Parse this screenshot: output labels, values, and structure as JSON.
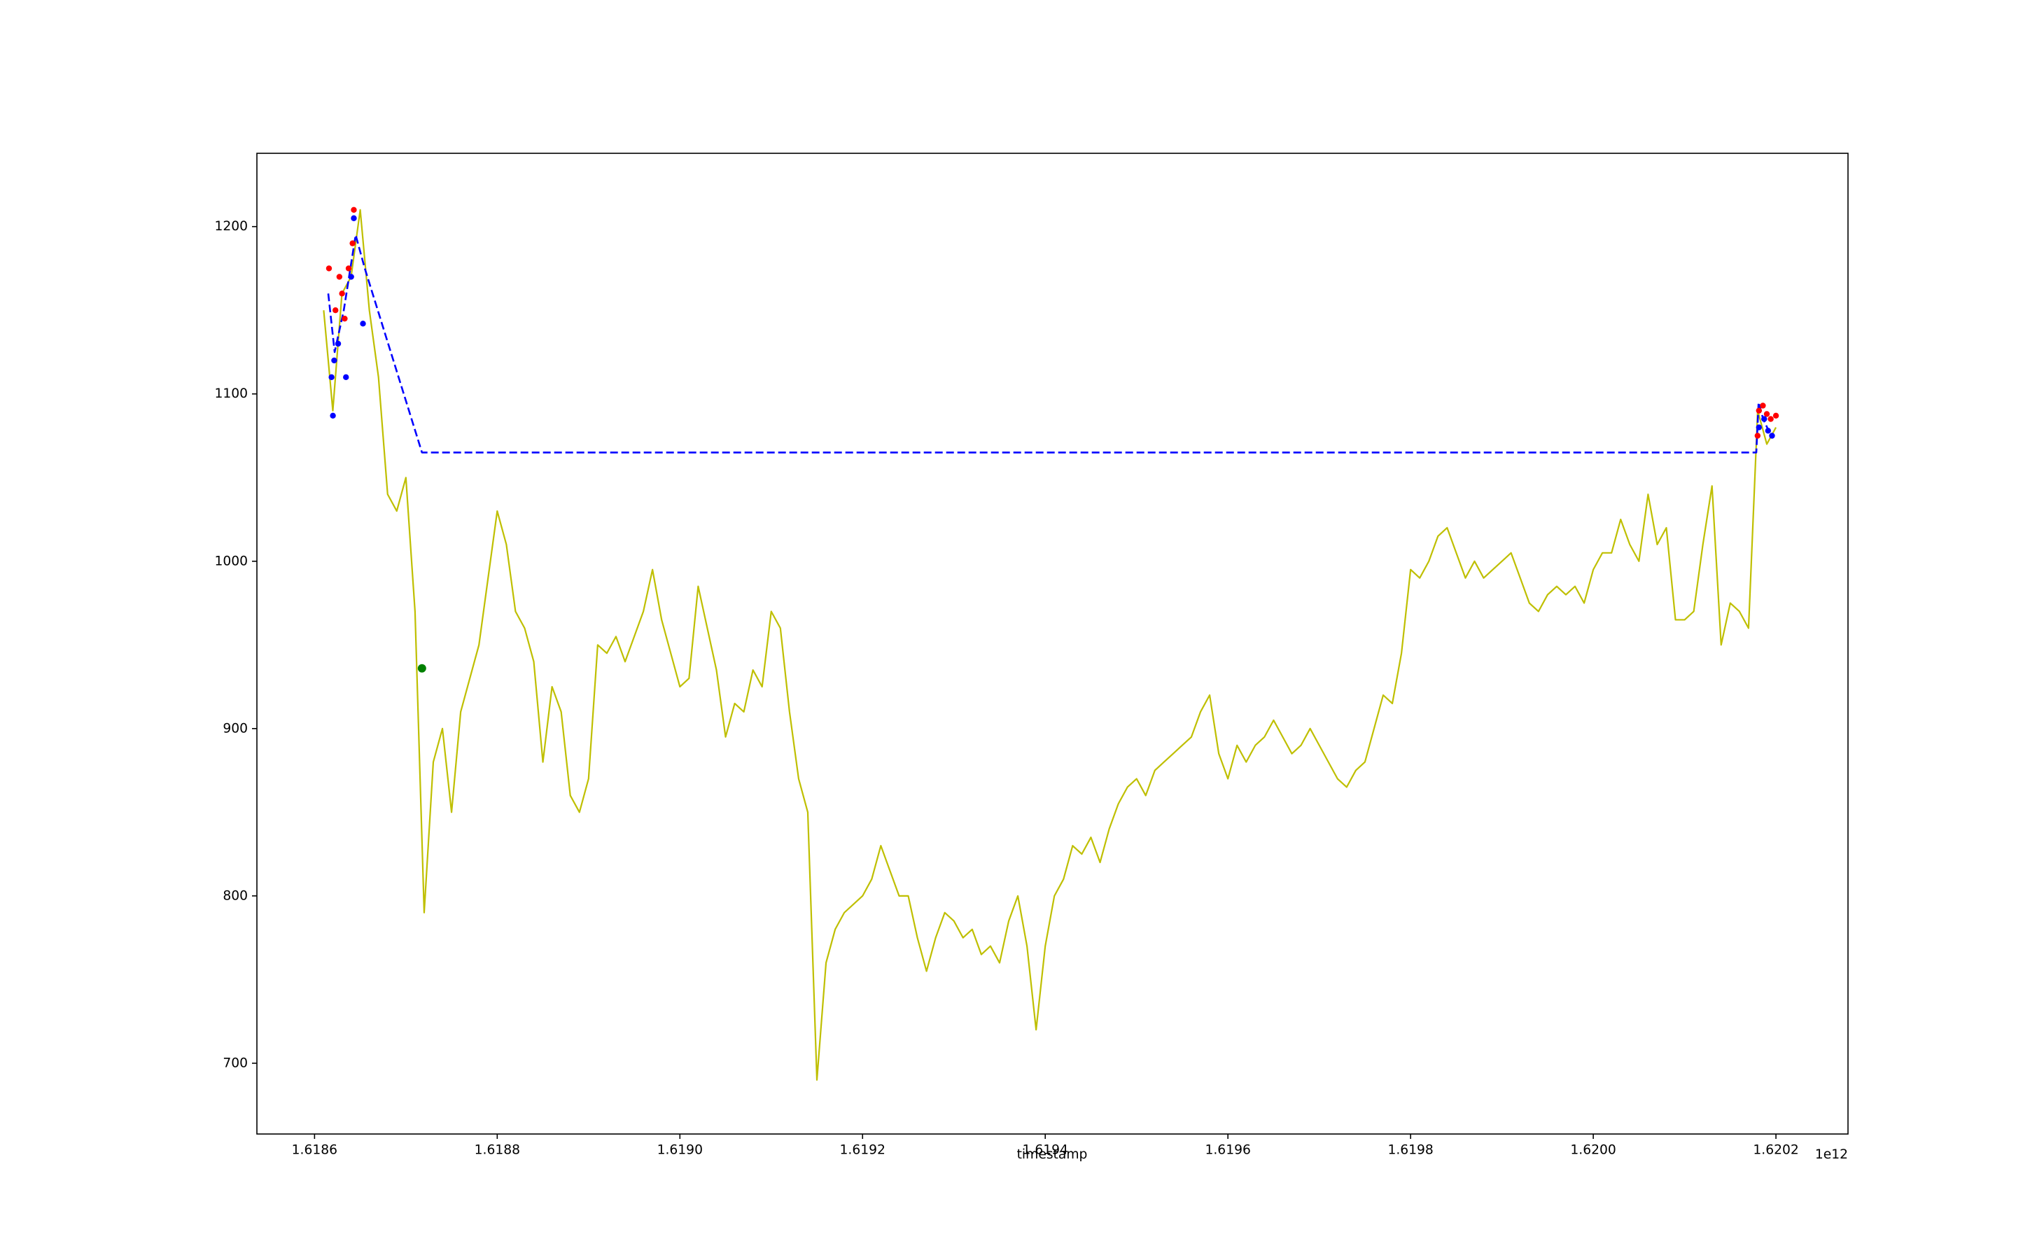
{
  "chart_data": {
    "type": "line",
    "xlabel": "timestamp",
    "x_offset_label": "1e12",
    "xlim": [
      1618536880000,
      1620278890000
    ],
    "ylim": [
      657.7,
      1243.8
    ],
    "xticks": [
      {
        "value": 1618600000000,
        "label": "1.6186"
      },
      {
        "value": 1618800000000,
        "label": "1.6188"
      },
      {
        "value": 1619000000000,
        "label": "1.6190"
      },
      {
        "value": 1619200000000,
        "label": "1.6192"
      },
      {
        "value": 1619400000000,
        "label": "1.6194"
      },
      {
        "value": 1619600000000,
        "label": "1.6196"
      },
      {
        "value": 1619800000000,
        "label": "1.6198"
      },
      {
        "value": 1620000000000,
        "label": "1.6200"
      },
      {
        "value": 1620200000000,
        "label": "1.6202"
      }
    ],
    "yticks": [
      700,
      800,
      900,
      1000,
      1100,
      1200
    ],
    "series": [
      {
        "type": "line",
        "color": "#bfbf00",
        "linestyle": "solid",
        "x": [
          1618610000000,
          1618620000000,
          1618630000000,
          1618640000000,
          1618650000000,
          1618660000000,
          1618670000000,
          1618680000000,
          1618690000000,
          1618700000000,
          1618710000000,
          1618720000000,
          1618730000000,
          1618740000000,
          1618750000000,
          1618760000000,
          1618770000000,
          1618780000000,
          1618790000000,
          1618800000000,
          1618810000000,
          1618820000000,
          1618830000000,
          1618840000000,
          1618850000000,
          1618860000000,
          1618870000000,
          1618880000000,
          1618890000000,
          1618900000000,
          1618910000000,
          1618920000000,
          1618930000000,
          1618940000000,
          1618950000000,
          1618960000000,
          1618970000000,
          1618980000000,
          1618990000000,
          1619000000000,
          1619010000000,
          1619020000000,
          1619030000000,
          1619040000000,
          1619050000000,
          1619060000000,
          1619070000000,
          1619080000000,
          1619090000000,
          1619100000000,
          1619110000000,
          1619120000000,
          1619130000000,
          1619140000000,
          1619150000000,
          1619160000000,
          1619170000000,
          1619180000000,
          1619190000000,
          1619200000000,
          1619210000000,
          1619220000000,
          1619230000000,
          1619240000000,
          1619250000000,
          1619260000000,
          1619270000000,
          1619280000000,
          1619290000000,
          1619300000000,
          1619310000000,
          1619320000000,
          1619330000000,
          1619340000000,
          1619350000000,
          1619360000000,
          1619370000000,
          1619380000000,
          1619390000000,
          1619400000000,
          1619410000000,
          1619420000000,
          1619430000000,
          1619440000000,
          1619450000000,
          1619460000000,
          1619470000000,
          1619480000000,
          1619490000000,
          1619500000000,
          1619510000000,
          1619520000000,
          1619530000000,
          1619540000000,
          1619550000000,
          1619560000000,
          1619570000000,
          1619580000000,
          1619590000000,
          1619600000000,
          1619610000000,
          1619620000000,
          1619630000000,
          1619640000000,
          1619650000000,
          1619660000000,
          1619670000000,
          1619680000000,
          1619690000000,
          1619700000000,
          1619710000000,
          1619720000000,
          1619730000000,
          1619740000000,
          1619750000000,
          1619760000000,
          1619770000000,
          1619780000000,
          1619790000000,
          1619800000000,
          1619810000000,
          1619820000000,
          1619830000000,
          1619840000000,
          1619850000000,
          1619860000000,
          1619870000000,
          1619880000000,
          1619890000000,
          1619900000000,
          1619910000000,
          1619920000000,
          1619930000000,
          1619940000000,
          1619950000000,
          1619960000000,
          1619970000000,
          1619980000000,
          1619990000000,
          1620000000000,
          1620010000000,
          1620020000000,
          1620030000000,
          1620040000000,
          1620050000000,
          1620060000000,
          1620070000000,
          1620080000000,
          1620090000000,
          1620100000000,
          1620110000000,
          1620120000000,
          1620130000000,
          1620140000000,
          1620150000000,
          1620160000000,
          1620170000000,
          1620180000000,
          1620190000000,
          1620200000000
        ],
        "values": [
          1150,
          1090,
          1160,
          1170,
          1210,
          1150,
          1110,
          1040,
          1030,
          1050,
          970,
          790,
          880,
          900,
          850,
          910,
          930,
          950,
          990,
          1030,
          1010,
          970,
          960,
          940,
          880,
          925,
          910,
          860,
          850,
          870,
          950,
          945,
          955,
          940,
          955,
          970,
          995,
          965,
          945,
          925,
          930,
          985,
          960,
          935,
          895,
          915,
          910,
          935,
          925,
          970,
          960,
          910,
          870,
          850,
          690,
          760,
          780,
          790,
          795,
          800,
          810,
          830,
          815,
          800,
          800,
          775,
          755,
          775,
          790,
          785,
          775,
          780,
          765,
          770,
          760,
          785,
          800,
          770,
          720,
          770,
          800,
          810,
          830,
          825,
          835,
          820,
          840,
          855,
          865,
          870,
          860,
          875,
          880,
          885,
          890,
          895,
          910,
          920,
          885,
          870,
          890,
          880,
          890,
          895,
          905,
          895,
          885,
          890,
          900,
          890,
          880,
          870,
          865,
          875,
          880,
          900,
          920,
          915,
          945,
          995,
          990,
          1000,
          1015,
          1020,
          1005,
          990,
          1000,
          990,
          995,
          1000,
          1005,
          990,
          975,
          970,
          980,
          985,
          980,
          985,
          975,
          995,
          1005,
          1005,
          1025,
          1010,
          1000,
          1040,
          1010,
          1020,
          965,
          965,
          970,
          1010,
          1045,
          950,
          975,
          970,
          960,
          1090,
          1070,
          1080
        ]
      },
      {
        "type": "line",
        "color": "#0000ff",
        "linestyle": "dashed",
        "x": [
          1618615000000,
          1618622000000,
          1618632000000,
          1618645000000,
          1618655000000,
          1618717600000,
          1620178500000,
          1620181000000,
          1620186000000,
          1620192000000
        ],
        "values": [
          1160,
          1125,
          1150,
          1195,
          1175,
          1065,
          1065,
          1095,
          1085,
          1078
        ]
      },
      {
        "type": "scatter",
        "color": "#ff0000",
        "x": [
          1618615800000,
          1618622900000,
          1618627200000,
          1618630100000,
          1618633000000,
          1618637300000,
          1618641600000,
          1618643000000,
          1620179900000,
          1620181400000,
          1620185700000,
          1620190000000,
          1620194300000,
          1620200000000
        ],
        "values": [
          1175,
          1150,
          1170,
          1160,
          1145,
          1175,
          1190,
          1210,
          1075,
          1090,
          1093,
          1088,
          1085,
          1087
        ]
      },
      {
        "type": "scatter",
        "color": "#0000ff",
        "x": [
          1618618600000,
          1618620100000,
          1618621500000,
          1618625800000,
          1618634400000,
          1618640100000,
          1618643000000,
          1618653000000,
          1620181400000,
          1620187100000,
          1620191400000,
          1620195700000
        ],
        "values": [
          1110,
          1087,
          1120,
          1130,
          1110,
          1170,
          1205,
          1142,
          1080,
          1085,
          1078,
          1075
        ]
      },
      {
        "type": "scatter",
        "color": "#008000",
        "size": "large",
        "x": [
          1618717600000
        ],
        "values": [
          936
        ]
      }
    ]
  }
}
